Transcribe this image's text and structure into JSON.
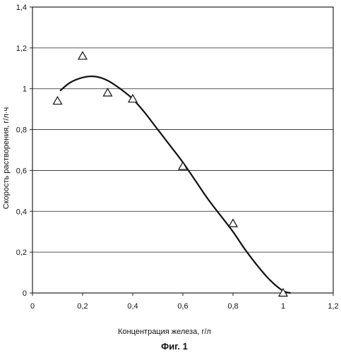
{
  "chart_data": {
    "type": "scatter",
    "xlabel": "Концентрация железа, г/л",
    "ylabel": "Скорость растворения, г/л·ч",
    "caption": "Фиг. 1",
    "xlim": [
      0,
      1.2
    ],
    "ylim": [
      0,
      1.4
    ],
    "x_ticks": [
      "0",
      "0,2",
      "0,4",
      "0,6",
      "0,8",
      "1",
      "1,2"
    ],
    "y_ticks": [
      "0",
      "0,2",
      "0,4",
      "0,6",
      "0,8",
      "1",
      "1,2",
      "1,4"
    ],
    "grid": "horizontal",
    "series": [
      {
        "kind": "points",
        "marker": "open-triangle",
        "x": [
          0.1,
          0.2,
          0.3,
          0.4,
          0.6,
          0.8,
          1.0
        ],
        "y": [
          0.94,
          1.16,
          0.98,
          0.95,
          0.62,
          0.34,
          0.0
        ]
      },
      {
        "kind": "trend-line",
        "x": [
          0.11,
          0.15,
          0.2,
          0.25,
          0.3,
          0.35,
          0.4,
          0.45,
          0.5,
          0.55,
          0.6,
          0.65,
          0.7,
          0.75,
          0.8,
          0.85,
          0.9,
          0.95,
          1.0,
          1.03
        ],
        "y": [
          0.99,
          1.03,
          1.055,
          1.06,
          1.04,
          1.0,
          0.95,
          0.88,
          0.8,
          0.72,
          0.64,
          0.55,
          0.46,
          0.38,
          0.3,
          0.21,
          0.13,
          0.06,
          0.01,
          0.0
        ]
      }
    ]
  }
}
